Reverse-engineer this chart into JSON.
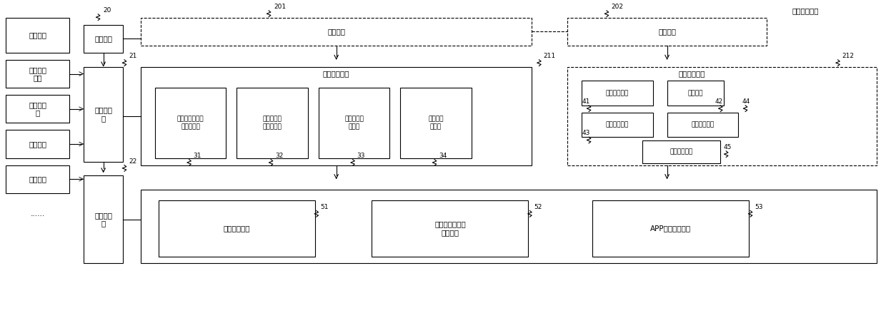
{
  "title": "费用处理系统",
  "fig_width": 12.4,
  "fig_height": 4.46,
  "bg_color": "#ffffff",
  "box_color": "#000000",
  "text_color": "#000000",
  "left_title": "终端设备",
  "left_items": [
    "员工个人\n信息",
    "审批人信\n息",
    "差旅信息",
    "发票信息",
    "......"
  ],
  "module_20": "入口模块",
  "label_20": "20",
  "label_21": "21",
  "label_22": "22",
  "platform_layer": "平台应用\n层",
  "tech_layer": "技术运作\n层",
  "front_entrance": "前台入口",
  "label_201": "201",
  "mid_entrance": "中台入口",
  "label_202": "202",
  "label_211": "211",
  "label_212": "212",
  "employee_module": "员工申报模块",
  "sub_modules": [
    "差旅及交际应酬\n费报销模块",
    "低值自行采\n购报销模块",
    "探亲机票报\n销模块",
    "备用金申\n请模块"
  ],
  "sub_labels": [
    "31",
    "32",
    "33",
    "34"
  ],
  "finance_module": "财务管理模块",
  "finance_subs": [
    "会计审核模块",
    "抽检模块",
    "调账扣分模块",
    "参数配置模块"
  ],
  "finance_labels": [
    "41",
    "42",
    "43",
    "44"
  ],
  "permission_module": "权限申请模块",
  "label_45": "45",
  "bottom_modules": [
    "机器学习模块",
    "电子发票自动化\n处理模块",
    "APP图标处理模块"
  ],
  "bottom_labels": [
    "51",
    "52",
    "53"
  ]
}
